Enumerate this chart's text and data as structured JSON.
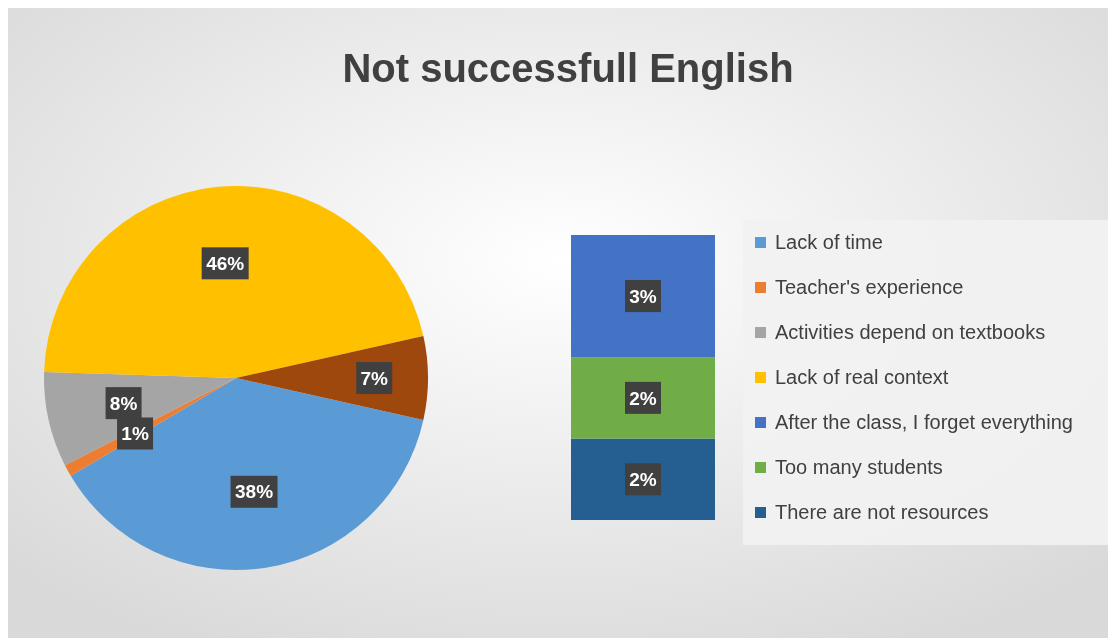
{
  "chart_data": [
    {
      "type": "pie",
      "title": "Not successfull English",
      "categories": [
        "Lack of time",
        "Teacher's experience",
        "Activities depend on textbooks",
        "Lack of real context",
        null
      ],
      "values": [
        38,
        1,
        8,
        46,
        7
      ],
      "colors": [
        "#5b9bd5",
        "#ed7d31",
        "#a5a5a5",
        "#ffc000",
        "#9e480e"
      ],
      "value_labels": [
        "38%",
        "1%",
        "8%",
        "46%",
        "7%"
      ],
      "legend": "right"
    },
    {
      "type": "bar",
      "stacked": true,
      "categories": [
        null
      ],
      "legend": "right",
      "series": [
        {
          "name": "There are not resources",
          "color": "#255e91",
          "values": [
            2
          ],
          "value_labels": [
            "2%"
          ]
        },
        {
          "name": "Too many students",
          "color": "#70ad47",
          "values": [
            2
          ],
          "value_labels": [
            "2%"
          ]
        },
        {
          "name": "After the class, I forget everything",
          "color": "#4472c4",
          "values": [
            3
          ],
          "value_labels": [
            "3%"
          ]
        }
      ]
    }
  ]
}
